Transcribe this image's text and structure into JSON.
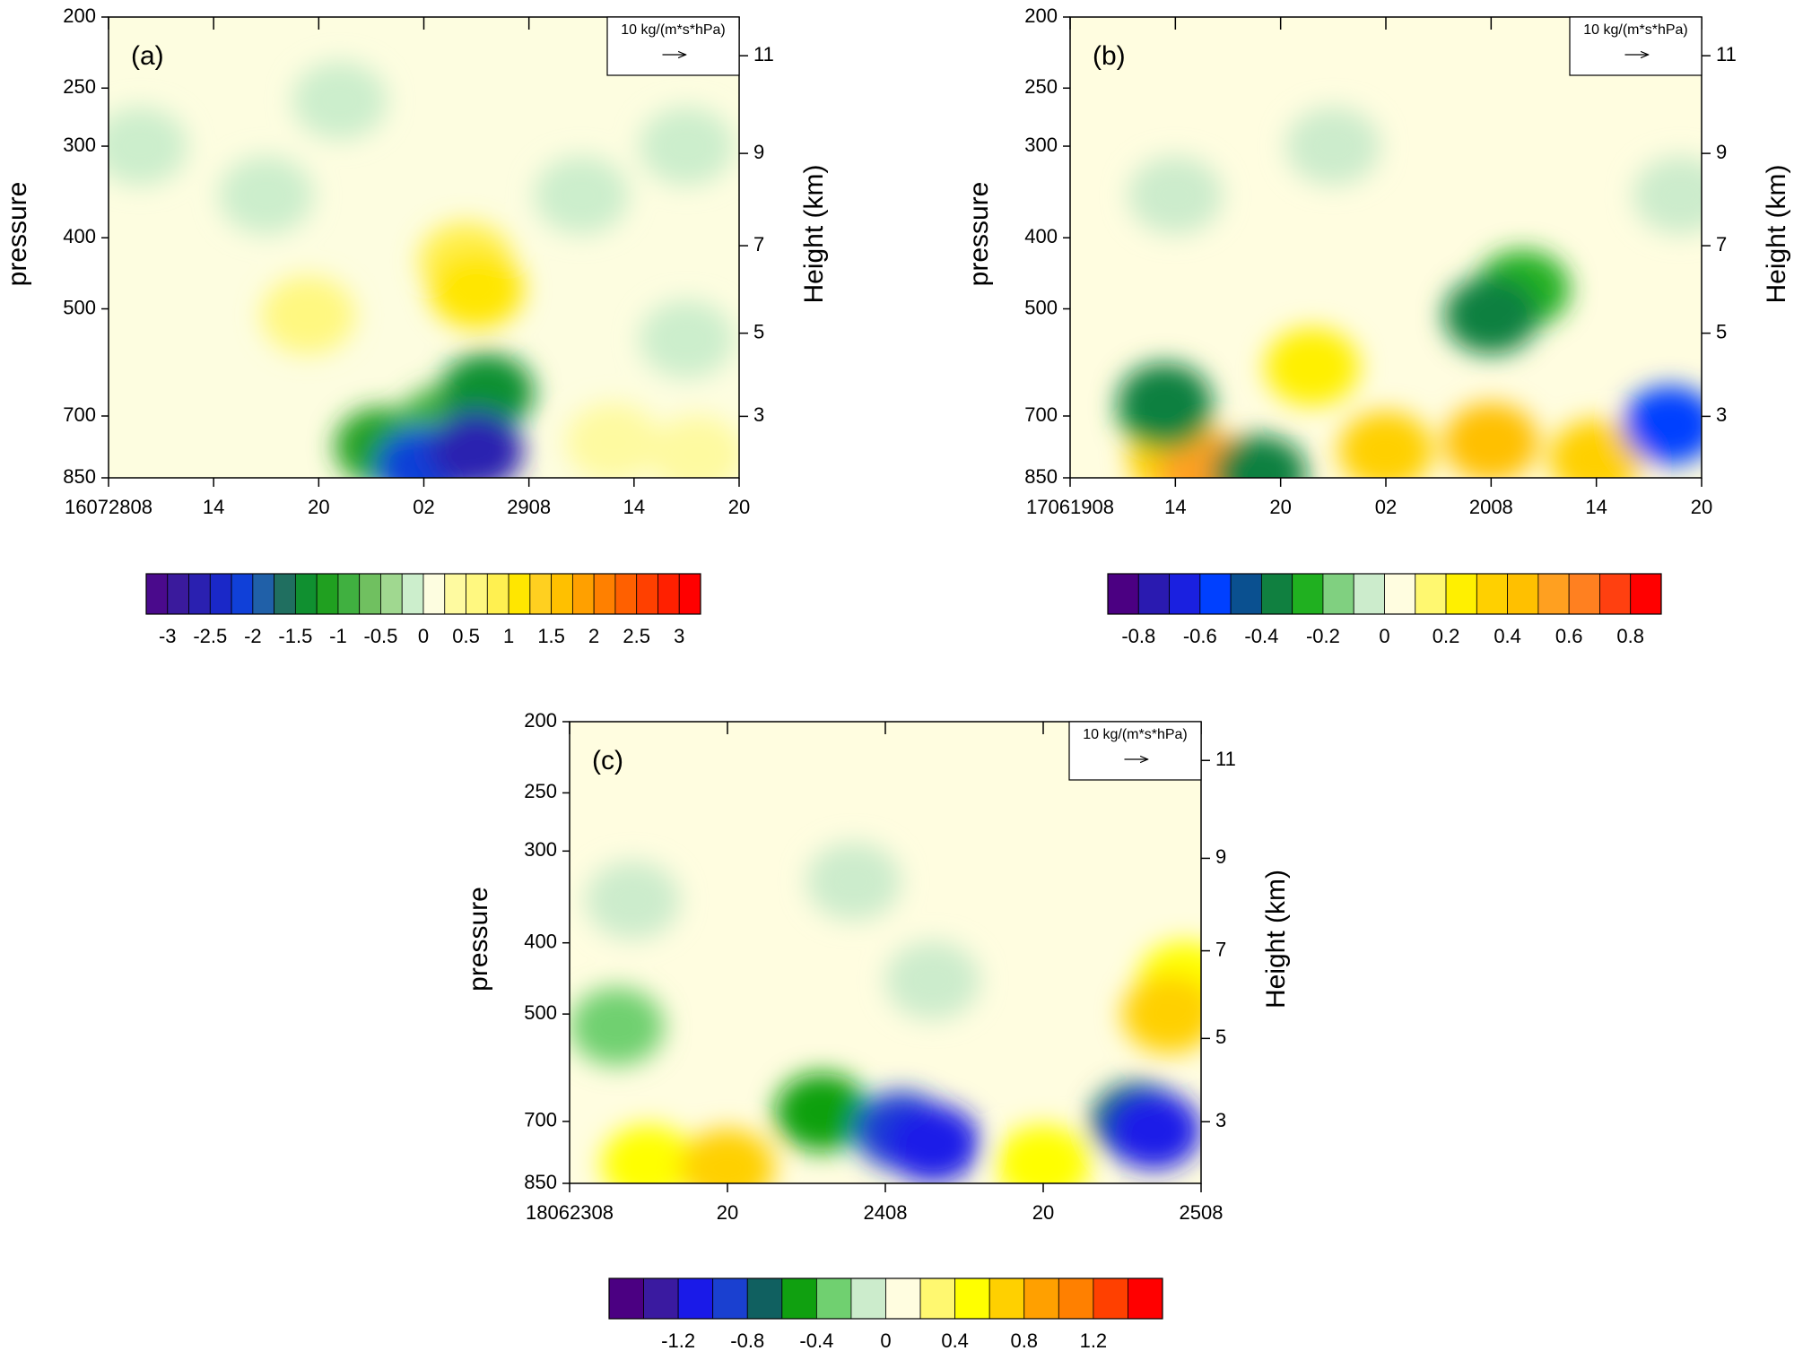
{
  "chart_data": [
    {
      "type": "contour",
      "panel_label": "(a)",
      "ylabel": "pressure",
      "y2label": "Height (km)",
      "categories": [
        "16072808",
        "14",
        "20",
        "02",
        "2908",
        "14",
        "20"
      ],
      "ylim": [
        850,
        200
      ],
      "yticks": [
        200,
        250,
        300,
        400,
        500,
        700,
        850
      ],
      "log_y": true,
      "y2lim": [
        1.46,
        11.76
      ],
      "y2ticks": [
        11,
        9,
        7,
        5,
        3
      ],
      "reference_vector": "10 kg/(m*s*hPa)",
      "colorbar": {
        "clim": [
          -3.25,
          3.25
        ],
        "colors": [
          "#4a0a8c",
          "#3a1a9c",
          "#2a20b0",
          "#1a28c8",
          "#1040d8",
          "#2060a8",
          "#206f60",
          "#109030",
          "#20a020",
          "#40b040",
          "#70c060",
          "#a0d890",
          "#cceecc",
          "#fdfde0",
          "#fefaa0",
          "#fff880",
          "#fff050",
          "#ffe600",
          "#ffd020",
          "#ffc000",
          "#ffa000",
          "#ff8000",
          "#ff6000",
          "#ff4000",
          "#ff2000",
          "#ff0000"
        ],
        "ticks": [
          -3,
          -2.5,
          -2,
          -1.5,
          -1,
          -0.5,
          0,
          0.5,
          1,
          1.5,
          2,
          2.5,
          3
        ]
      },
      "features": [
        {
          "x": 0.3,
          "p": 300,
          "value": -0.2
        },
        {
          "x": 1.5,
          "p": 350,
          "value": -0.2
        },
        {
          "x": 2.2,
          "p": 260,
          "value": -0.2
        },
        {
          "x": 4.5,
          "p": 350,
          "value": -0.2
        },
        {
          "x": 5.5,
          "p": 300,
          "value": -0.2
        },
        {
          "x": 5.5,
          "p": 550,
          "value": -0.2
        },
        {
          "x": 1.9,
          "p": 510,
          "value": 0.7
        },
        {
          "x": 3.4,
          "p": 430,
          "value": 0.8
        },
        {
          "x": 3.5,
          "p": 470,
          "value": 1.2
        },
        {
          "x": 4.8,
          "p": 760,
          "value": 0.5
        },
        {
          "x": 5.6,
          "p": 790,
          "value": 0.5
        },
        {
          "x": 2.6,
          "p": 770,
          "value": -1.2
        },
        {
          "x": 3.2,
          "p": 720,
          "value": -1.0
        },
        {
          "x": 3.6,
          "p": 650,
          "value": -1.5
        },
        {
          "x": 3.0,
          "p": 820,
          "value": -2.2
        },
        {
          "x": 3.5,
          "p": 780,
          "value": -2.6
        }
      ]
    },
    {
      "type": "contour",
      "panel_label": "(b)",
      "ylabel": "pressure",
      "y2label": "Height (km)",
      "categories": [
        "17061908",
        "14",
        "20",
        "02",
        "2008",
        "14",
        "20"
      ],
      "ylim": [
        850,
        200
      ],
      "yticks": [
        200,
        250,
        300,
        400,
        500,
        700,
        850
      ],
      "log_y": true,
      "y2lim": [
        1.46,
        11.76
      ],
      "y2ticks": [
        11,
        9,
        7,
        5,
        3
      ],
      "reference_vector": "10 kg/(m*s*hPa)",
      "colorbar": {
        "clim": [
          -0.9,
          0.9
        ],
        "colors": [
          "#4b0082",
          "#2a1ab0",
          "#1a20e0",
          "#0040ff",
          "#0a5090",
          "#108040",
          "#20b020",
          "#80d080",
          "#cceccc",
          "#fffde0",
          "#fff870",
          "#fff000",
          "#ffd000",
          "#ffc000",
          "#ffa020",
          "#ff8020",
          "#ff4010",
          "#ff0000"
        ],
        "ticks": [
          -0.8,
          -0.6,
          -0.4,
          -0.2,
          0,
          0.2,
          0.4,
          0.6,
          0.8
        ]
      },
      "features": [
        {
          "x": 2.5,
          "p": 300,
          "value": -0.05
        },
        {
          "x": 1.0,
          "p": 350,
          "value": -0.05
        },
        {
          "x": 5.8,
          "p": 350,
          "value": -0.05
        },
        {
          "x": 2.3,
          "p": 600,
          "value": 0.2
        },
        {
          "x": 1.0,
          "p": 800,
          "value": 0.3
        },
        {
          "x": 3.0,
          "p": 780,
          "value": 0.3
        },
        {
          "x": 5.0,
          "p": 800,
          "value": 0.3
        },
        {
          "x": 4.0,
          "p": 760,
          "value": 0.4
        },
        {
          "x": 1.3,
          "p": 830,
          "value": 0.6
        },
        {
          "x": 4.3,
          "p": 470,
          "value": -0.2
        },
        {
          "x": 0.9,
          "p": 690,
          "value": -0.2
        },
        {
          "x": 0.9,
          "p": 670,
          "value": -0.4
        },
        {
          "x": 4.0,
          "p": 510,
          "value": -0.4
        },
        {
          "x": 1.8,
          "p": 840,
          "value": -0.4
        },
        {
          "x": 5.7,
          "p": 720,
          "value": -0.6
        }
      ]
    },
    {
      "type": "contour",
      "panel_label": "(c)",
      "ylabel": "pressure",
      "y2label": "Height (km)",
      "categories": [
        "18062308",
        "20",
        "2408",
        "20",
        "2508"
      ],
      "ylim": [
        850,
        200
      ],
      "yticks": [
        200,
        250,
        300,
        400,
        500,
        700,
        850
      ],
      "log_y": true,
      "y2lim": [
        1.46,
        11.76
      ],
      "y2ticks": [
        11,
        9,
        7,
        5,
        3
      ],
      "reference_vector": "10 kg/(m*s*hPa)",
      "colorbar": {
        "clim": [
          -1.6,
          1.6
        ],
        "colors": [
          "#4b0082",
          "#3a1aa0",
          "#1a1ae8",
          "#1a40d0",
          "#106060",
          "#10a010",
          "#70d070",
          "#cceccc",
          "#fffde0",
          "#fff870",
          "#ffff00",
          "#ffd000",
          "#ffa000",
          "#ff8000",
          "#ff4000",
          "#ff0000"
        ],
        "ticks": [
          -1.2,
          -0.8,
          -0.4,
          0,
          0.4,
          0.8,
          1.2
        ]
      },
      "features": [
        {
          "x": 0.4,
          "p": 350,
          "value": -0.1
        },
        {
          "x": 1.8,
          "p": 330,
          "value": -0.1
        },
        {
          "x": 2.3,
          "p": 450,
          "value": -0.1
        },
        {
          "x": 0.5,
          "p": 800,
          "value": 0.5
        },
        {
          "x": 1.0,
          "p": 810,
          "value": 0.6
        },
        {
          "x": 3.0,
          "p": 800,
          "value": 0.5
        },
        {
          "x": 3.9,
          "p": 450,
          "value": 0.4
        },
        {
          "x": 3.8,
          "p": 500,
          "value": 0.6
        },
        {
          "x": 0.3,
          "p": 520,
          "value": -0.4
        },
        {
          "x": 1.6,
          "p": 680,
          "value": -0.6
        },
        {
          "x": 2.1,
          "p": 720,
          "value": -1.0
        },
        {
          "x": 2.3,
          "p": 750,
          "value": -1.2
        },
        {
          "x": 3.6,
          "p": 700,
          "value": -0.8
        },
        {
          "x": 3.7,
          "p": 720,
          "value": -1.2
        }
      ]
    }
  ]
}
